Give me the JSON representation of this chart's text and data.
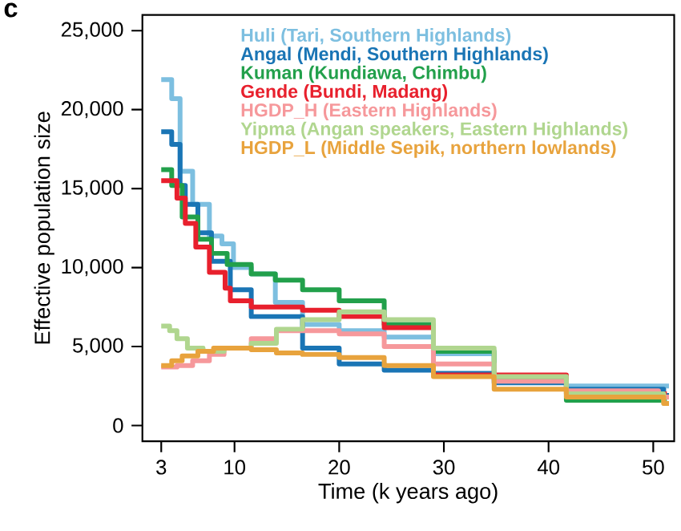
{
  "chart_data": {
    "type": "step",
    "xlabel": "Time (k years ago)",
    "ylabel": "Effective population size",
    "annotations": [
      "c"
    ],
    "xlim": [
      1.2,
      52
    ],
    "ylim": [
      -1000,
      26000
    ],
    "xticks": [
      3,
      10,
      20,
      30,
      40,
      50
    ],
    "yticks": [
      {
        "value": 0,
        "label": "0"
      },
      {
        "value": 5000,
        "label": "5,000"
      },
      {
        "value": 10000,
        "label": "10,000"
      },
      {
        "value": 15000,
        "label": "15,000"
      },
      {
        "value": 20000,
        "label": "20,000"
      },
      {
        "value": 25000,
        "label": "25,000"
      }
    ],
    "legend": "top",
    "grid": false,
    "marker": "none",
    "line_style": "solid",
    "series": [
      {
        "name": "Huli (Tari, Southern Highlands)",
        "color": "#7dbfe0",
        "x": [
          3,
          4,
          4.8,
          6,
          7.6,
          8.8,
          9.9,
          11.6,
          13.9,
          16.5,
          20,
          24.3,
          29,
          34.8,
          41.7,
          51.5
        ],
        "values": [
          21900,
          20700,
          16100,
          14000,
          12000,
          11500,
          10000,
          9600,
          7800,
          6400,
          6000,
          5600,
          4550,
          2900,
          2500,
          2500
        ]
      },
      {
        "name": "Angal (Mendi, Southern Highlands)",
        "color": "#1a75b5",
        "x": [
          3,
          4,
          4.8,
          5.3,
          6.5,
          7.8,
          9.6,
          11.6,
          13.9,
          16.5,
          20,
          24.3,
          29,
          34.8,
          41.7,
          51,
          51.5
        ],
        "values": [
          18600,
          17800,
          15200,
          14000,
          12200,
          10400,
          8600,
          6900,
          6900,
          4900,
          3900,
          3500,
          3300,
          2700,
          2300,
          1900,
          1900
        ]
      },
      {
        "name": "Kuman (Kundiawa, Chimbu)",
        "color": "#22a04b",
        "x": [
          3,
          4,
          5,
          6.5,
          7.8,
          9.3,
          11.6,
          13.9,
          16.5,
          20,
          24.3,
          29,
          34.8,
          41.7,
          51.3
        ],
        "values": [
          16200,
          15200,
          13200,
          11800,
          10900,
          10200,
          9600,
          9200,
          8600,
          7900,
          6400,
          4700,
          3000,
          1600,
          1600
        ]
      },
      {
        "name": "Gende (Bundi, Madang)",
        "color": "#e8202d",
        "x": [
          3,
          4.5,
          5.3,
          6.3,
          7.6,
          9.1,
          9.6,
          11.6,
          16.5,
          20,
          24.3,
          29,
          34.8,
          41.7,
          51.3
        ],
        "values": [
          15500,
          14400,
          12800,
          11300,
          9700,
          8700,
          7900,
          7500,
          7300,
          6900,
          6200,
          3200,
          3200,
          2000,
          2000
        ]
      },
      {
        "name": "HGDP_H (Eastern Highlands)",
        "color": "#f6989b",
        "x": [
          3,
          4.5,
          6,
          7.6,
          9,
          11.6,
          14,
          20,
          24.3,
          29,
          34.8,
          41.7,
          50.5,
          51.5
        ],
        "values": [
          3700,
          3800,
          4100,
          4500,
          4900,
          5500,
          6000,
          5800,
          5000,
          3900,
          2800,
          2200,
          1800,
          1800
        ]
      },
      {
        "name": "Yipma (Angan speakers, Eastern Highlands)",
        "color": "#b0d68f",
        "x": [
          3,
          3.8,
          4.5,
          5.5,
          7,
          9,
          11.6,
          14,
          16.5,
          20,
          24.3,
          29,
          34.8,
          41.7,
          51,
          51.5
        ],
        "values": [
          6300,
          6000,
          5500,
          4900,
          4700,
          4900,
          5200,
          6100,
          6700,
          7200,
          6700,
          4900,
          3100,
          2000,
          1400,
          1400
        ]
      },
      {
        "name": "HGDP_L (Middle Sepik, northern lowlands)",
        "color": "#e8a33d",
        "x": [
          3,
          4,
          5,
          6.5,
          8,
          11.6,
          14,
          16.5,
          20,
          24.3,
          29,
          34.8,
          41.7,
          51,
          51.5
        ],
        "values": [
          3800,
          4100,
          4400,
          4700,
          4900,
          4800,
          4600,
          4500,
          4300,
          3800,
          3100,
          2300,
          1800,
          1400,
          1400
        ]
      }
    ]
  }
}
